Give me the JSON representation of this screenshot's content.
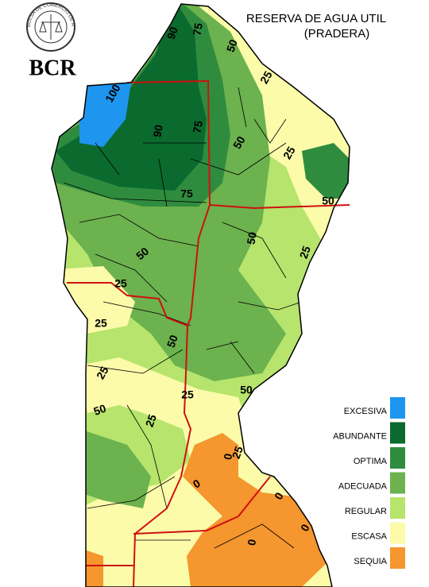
{
  "header": {
    "title": "RESERVA DE AGUA UTIL",
    "subtitle": "(PRADERA)",
    "brand": "BCR",
    "seal_text": "BOLSA DE COMERCIO DE ROSARIO"
  },
  "legend": [
    {
      "label": "EXCESIVA",
      "color": "#1e96f0"
    },
    {
      "label": "ABUNDANTE",
      "color": "#0b6a2e"
    },
    {
      "label": "OPTIMA",
      "color": "#2f8c3f"
    },
    {
      "label": "ADECUADA",
      "color": "#6cb24e"
    },
    {
      "label": "REGULAR",
      "color": "#b6e46c"
    },
    {
      "label": "ESCASA",
      "color": "#fbfbaa"
    },
    {
      "label": "SEQUIA",
      "color": "#f5962e"
    }
  ],
  "contour_labels": [
    100,
    90,
    75,
    50,
    25,
    90,
    75,
    50,
    25,
    75,
    50,
    50,
    25,
    50,
    25,
    25,
    50,
    25,
    50,
    25,
    50,
    25,
    0,
    25,
    0,
    0,
    0,
    0
  ]
}
